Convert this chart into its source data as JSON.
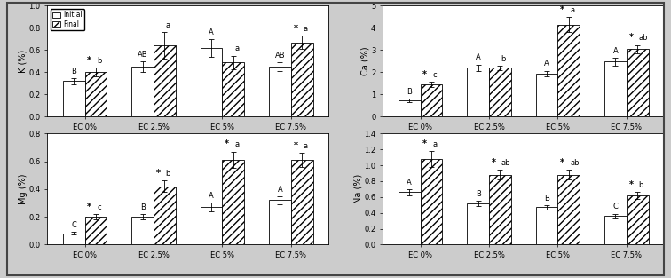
{
  "categories": [
    "EC 0%",
    "EC 2.5%",
    "EC 5%",
    "EC 7.5%"
  ],
  "K": {
    "initial": [
      0.32,
      0.45,
      0.62,
      0.45
    ],
    "final": [
      0.4,
      0.64,
      0.49,
      0.67
    ],
    "initial_err": [
      0.03,
      0.05,
      0.08,
      0.04
    ],
    "final_err": [
      0.04,
      0.12,
      0.06,
      0.06
    ],
    "initial_labels": [
      "B",
      "AB",
      "A",
      "AB"
    ],
    "final_labels": [
      "b",
      "a",
      "a",
      "a"
    ],
    "final_star": [
      true,
      false,
      false,
      true
    ],
    "ylabel": "K (%)",
    "ylim": [
      0,
      1.0
    ],
    "yticks": [
      0.0,
      0.2,
      0.4,
      0.6,
      0.8,
      1.0
    ]
  },
  "Mg": {
    "initial": [
      0.08,
      0.2,
      0.27,
      0.32
    ],
    "final": [
      0.2,
      0.42,
      0.61,
      0.61
    ],
    "initial_err": [
      0.01,
      0.02,
      0.03,
      0.03
    ],
    "final_err": [
      0.02,
      0.04,
      0.06,
      0.05
    ],
    "initial_labels": [
      "C",
      "B",
      "A",
      "A"
    ],
    "final_labels": [
      "c",
      "b",
      "a",
      "a"
    ],
    "final_star": [
      true,
      true,
      true,
      true
    ],
    "ylabel": "Mg (%)",
    "ylim": [
      0.0,
      0.8
    ],
    "yticks": [
      0.0,
      0.2,
      0.4,
      0.6,
      0.8
    ]
  },
  "Ca": {
    "initial": [
      0.75,
      2.2,
      1.95,
      2.48
    ],
    "final": [
      1.45,
      2.2,
      4.15,
      3.05
    ],
    "initial_err": [
      0.08,
      0.15,
      0.12,
      0.18
    ],
    "final_err": [
      0.12,
      0.1,
      0.35,
      0.18
    ],
    "initial_labels": [
      "B",
      "A",
      "A",
      "A"
    ],
    "final_labels": [
      "c",
      "b",
      "a",
      "ab"
    ],
    "final_star": [
      true,
      false,
      true,
      true
    ],
    "ylabel": "Ca (%)",
    "ylim": [
      0,
      5
    ],
    "yticks": [
      0,
      1,
      2,
      3,
      4,
      5
    ]
  },
  "Na": {
    "initial": [
      0.66,
      0.52,
      0.47,
      0.36
    ],
    "final": [
      1.08,
      0.88,
      0.88,
      0.62
    ],
    "initial_err": [
      0.04,
      0.03,
      0.03,
      0.03
    ],
    "final_err": [
      0.1,
      0.06,
      0.06,
      0.04
    ],
    "initial_labels": [
      "A",
      "B",
      "B",
      "C"
    ],
    "final_labels": [
      "a",
      "ab",
      "ab",
      "b"
    ],
    "final_star": [
      true,
      true,
      true,
      true
    ],
    "ylabel": "Na (%)",
    "ylim": [
      0.0,
      1.4
    ],
    "yticks": [
      0.0,
      0.2,
      0.4,
      0.6,
      0.8,
      1.0,
      1.2,
      1.4
    ]
  },
  "bar_width": 0.32,
  "hatch": "////",
  "fontsize_label": 7,
  "fontsize_tick": 6,
  "fontsize_annot": 6,
  "fig_bg": "#e8e8e8",
  "outer_border_color": "#555555"
}
